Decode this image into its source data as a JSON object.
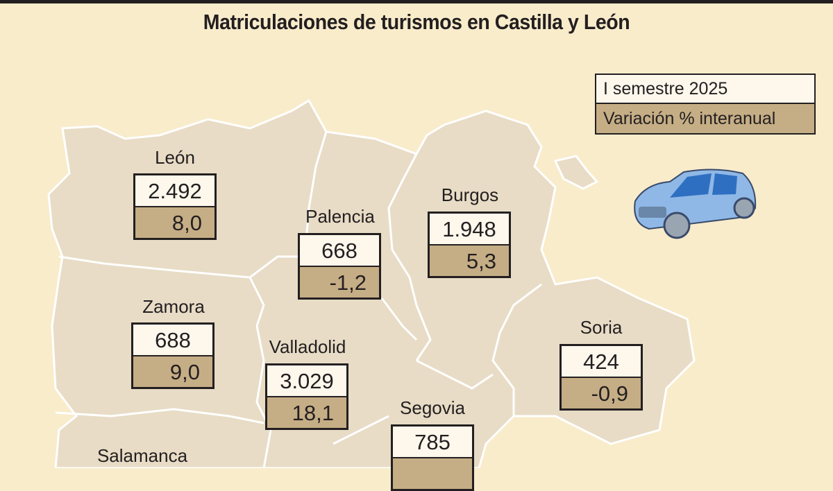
{
  "header": {
    "title": "Matriculaciones de turismos en Castilla y León"
  },
  "legend": {
    "items": [
      "I semestre 2025",
      "Variación % interanual"
    ]
  },
  "provinces": [
    {
      "name": "León",
      "registrations": "2.492",
      "variation": "8,0"
    },
    {
      "name": "Palencia",
      "registrations": "668",
      "variation": "-1,2"
    },
    {
      "name": "Burgos",
      "registrations": "1.948",
      "variation": "5,3"
    },
    {
      "name": "Zamora",
      "registrations": "688",
      "variation": "9,0"
    },
    {
      "name": "Valladolid",
      "registrations": "3.029",
      "variation": "18,1"
    },
    {
      "name": "Soria",
      "registrations": "424",
      "variation": "-0,9"
    },
    {
      "name": "Segovia",
      "registrations": "785"
    },
    {
      "name": "Salamanca"
    }
  ]
}
